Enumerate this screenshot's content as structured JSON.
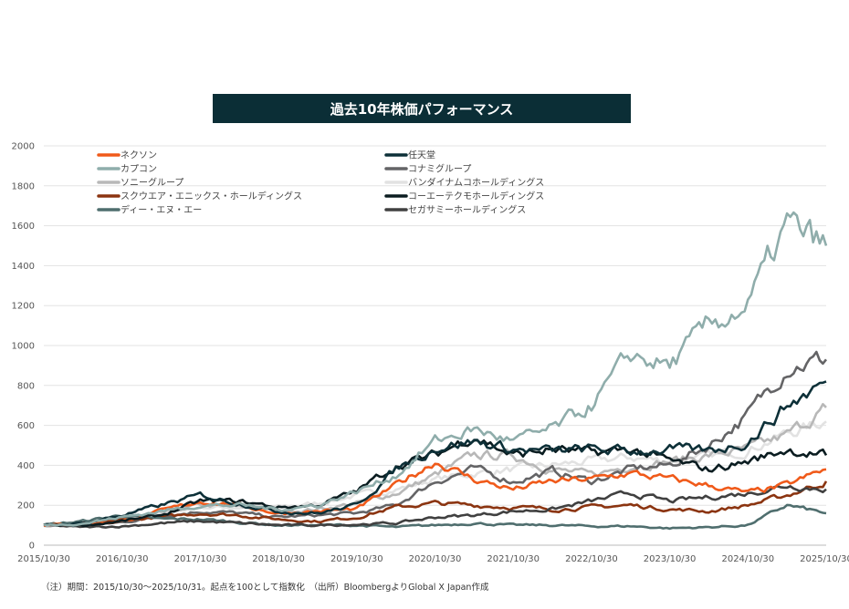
{
  "chart_data": {
    "type": "line",
    "title": "過去10年株価パフォーマンス",
    "xlabel": "",
    "ylabel": "",
    "ylim": [
      0,
      2000
    ],
    "yticks": [
      0,
      200,
      400,
      600,
      800,
      1000,
      1200,
      1400,
      1600,
      1800,
      2000
    ],
    "xticks": [
      "2015/10/30",
      "2016/10/30",
      "2017/10/30",
      "2018/10/30",
      "2019/10/30",
      "2020/10/30",
      "2021/10/30",
      "2022/10/30",
      "2023/10/30",
      "2024/10/30",
      "2025/10/30"
    ],
    "grid": "horizontal",
    "legend": "top, two columns",
    "x": [
      "2015/10",
      "2016/04",
      "2016/10",
      "2017/04",
      "2017/10",
      "2018/04",
      "2018/10",
      "2019/04",
      "2019/10",
      "2020/04",
      "2020/10",
      "2021/04",
      "2021/10",
      "2022/04",
      "2022/10",
      "2023/04",
      "2023/10",
      "2024/04",
      "2024/10",
      "2025/04",
      "2025/10"
    ],
    "series": [
      {
        "name": "ネクソン",
        "color": "#f05a1a",
        "values": [
          100,
          105,
          120,
          170,
          220,
          200,
          160,
          170,
          180,
          300,
          420,
          330,
          280,
          320,
          330,
          360,
          330,
          300,
          260,
          300,
          380
        ]
      },
      {
        "name": "任天堂",
        "color": "#0d3038",
        "values": [
          100,
          110,
          150,
          200,
          250,
          210,
          170,
          160,
          200,
          380,
          490,
          520,
          480,
          470,
          480,
          470,
          480,
          470,
          520,
          700,
          820
        ]
      },
      {
        "name": "カプコン",
        "color": "#8fadab",
        "values": [
          100,
          110,
          140,
          170,
          200,
          200,
          180,
          200,
          270,
          350,
          520,
          580,
          520,
          580,
          700,
          950,
          900,
          1100,
          1200,
          1600,
          1500
        ]
      },
      {
        "name": "コナミグループ",
        "color": "#646466",
        "values": [
          100,
          95,
          115,
          145,
          170,
          160,
          140,
          150,
          160,
          200,
          320,
          380,
          320,
          370,
          320,
          380,
          400,
          500,
          650,
          900,
          930
        ]
      },
      {
        "name": "ソニーグループ",
        "color": "#b8b8b8",
        "values": [
          100,
          100,
          130,
          160,
          200,
          190,
          170,
          180,
          210,
          260,
          350,
          450,
          450,
          380,
          350,
          400,
          420,
          450,
          480,
          550,
          690
        ]
      },
      {
        "name": "バンダイナムコホールディングス",
        "color": "#e2e2e2",
        "values": [
          100,
          105,
          130,
          160,
          190,
          190,
          190,
          210,
          250,
          280,
          330,
          360,
          380,
          400,
          420,
          440,
          420,
          440,
          480,
          560,
          620
        ]
      },
      {
        "name": "スクウエア・エニックス・ホールディングス",
        "color": "#8b3410",
        "values": [
          100,
          110,
          125,
          140,
          160,
          150,
          130,
          120,
          140,
          190,
          210,
          200,
          190,
          180,
          190,
          200,
          180,
          170,
          200,
          250,
          320
        ]
      },
      {
        "name": "コーエーテクモホールディングス",
        "color": "#0a1c20",
        "values": [
          100,
          100,
          120,
          150,
          220,
          220,
          190,
          200,
          270,
          400,
          450,
          550,
          450,
          480,
          460,
          480,
          420,
          380,
          420,
          480,
          450
        ]
      },
      {
        "name": "ディー・エヌ・エー",
        "color": "#4f6e6e",
        "values": [
          100,
          120,
          150,
          130,
          130,
          115,
          100,
          100,
          100,
          90,
          100,
          110,
          100,
          100,
          95,
          95,
          85,
          90,
          100,
          200,
          160
        ]
      },
      {
        "name": "セガサミーホールディングス",
        "color": "#404040",
        "values": [
          100,
          90,
          95,
          110,
          120,
          110,
          100,
          100,
          105,
          110,
          140,
          150,
          170,
          180,
          220,
          260,
          220,
          240,
          260,
          300,
          280
        ]
      }
    ]
  },
  "footnote": "（注）期間：2015/10/30〜2025/10/31。起点を100として指数化　（出所）BloombergよりGlobal X Japan作成"
}
